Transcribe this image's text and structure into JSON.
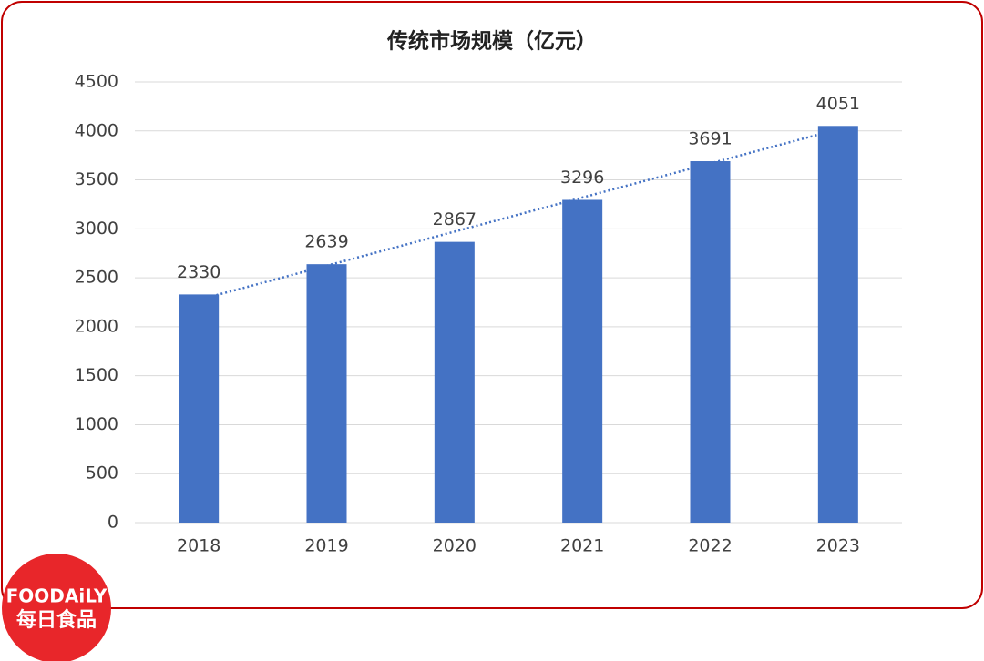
{
  "chart_data": {
    "type": "bar",
    "title": "传统市场规模（亿元）",
    "categories": [
      "2018",
      "2019",
      "2020",
      "2021",
      "2022",
      "2023"
    ],
    "values": [
      2330,
      2639,
      2867,
      3296,
      3691,
      4051
    ],
    "color": "#4472c4",
    "ylim": [
      0,
      4500
    ],
    "yticks": [
      0,
      500,
      1000,
      1500,
      2000,
      2500,
      3000,
      3500,
      4000,
      4500
    ],
    "grid": true,
    "trendline": "linear"
  },
  "logo": {
    "brand": "FOODAiLY",
    "name": "每日食品"
  }
}
